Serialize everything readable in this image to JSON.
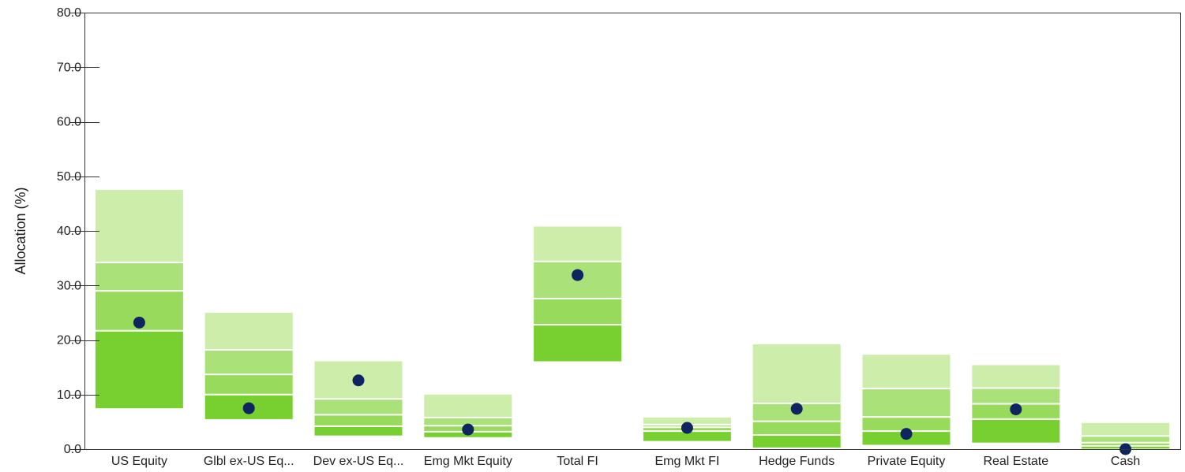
{
  "chart_data": {
    "type": "bar",
    "subtype": "floating-percentile-range-bars-with-point-marker",
    "title": "",
    "xlabel": "",
    "ylabel": "Allocation (%)",
    "ylim": [
      0,
      80
    ],
    "yticks": [
      "0.0",
      "10.0",
      "20.0",
      "30.0",
      "40.0",
      "50.0",
      "60.0",
      "70.0",
      "80.0"
    ],
    "grid": false,
    "legend": "none",
    "categories": [
      "US Equity",
      "Glbl ex-US Eq...",
      "Dev ex-US Eq...",
      "Emg Mkt Equity",
      "Total FI",
      "Emg Mkt FI",
      "Hedge Funds",
      "Private Equity",
      "Real Estate",
      "Cash"
    ],
    "ranges": [
      [
        7.5,
        21.7,
        29.0,
        34.2,
        47.5
      ],
      [
        5.5,
        10.0,
        13.7,
        18.2,
        25.0
      ],
      [
        2.5,
        4.2,
        6.3,
        9.2,
        16.1
      ],
      [
        2.2,
        3.2,
        4.3,
        5.8,
        10.0
      ],
      [
        16.1,
        22.8,
        27.6,
        34.4,
        40.8
      ],
      [
        1.5,
        3.3,
        4.0,
        4.5,
        5.8
      ],
      [
        0.3,
        2.6,
        5.1,
        8.4,
        19.2
      ],
      [
        0.8,
        3.3,
        5.9,
        11.1,
        17.3
      ],
      [
        1.2,
        5.5,
        8.3,
        11.2,
        15.4
      ],
      [
        0.1,
        0.6,
        1.2,
        2.4,
        4.8
      ]
    ],
    "points": [
      23.2,
      7.5,
      12.6,
      3.6,
      31.9,
      3.9,
      7.4,
      2.8,
      7.3,
      0.0
    ],
    "colors": {
      "band_top": "#CDEDAB",
      "band_upper_mid": "#AAE179",
      "band_lower_mid": "#98DB5C",
      "band_bottom": "#78D030",
      "separator": "#FFFFFF",
      "marker": "#0E2560",
      "axis": "#333333"
    }
  }
}
